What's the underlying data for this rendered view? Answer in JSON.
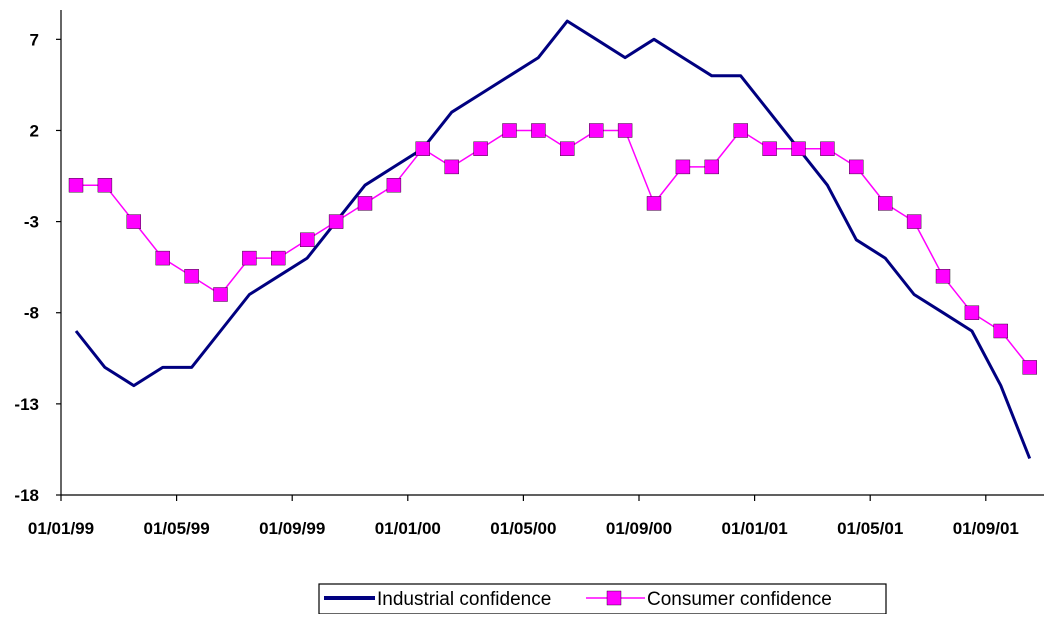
{
  "chart_data": {
    "type": "line",
    "title": "",
    "xlabel": "",
    "ylabel": "",
    "ylim": [
      -18,
      8.5
    ],
    "y_ticks": [
      -18,
      -13,
      -8,
      -3,
      2,
      7
    ],
    "x_tick_labels": [
      "01/01/99",
      "01/05/99",
      "01/09/99",
      "01/01/00",
      "01/05/00",
      "01/09/00",
      "01/01/01",
      "01/05/01",
      "01/09/01"
    ],
    "x": [
      "1999-01",
      "1999-02",
      "1999-03",
      "1999-04",
      "1999-05",
      "1999-06",
      "1999-07",
      "1999-08",
      "1999-09",
      "1999-10",
      "1999-11",
      "1999-12",
      "2000-01",
      "2000-02",
      "2000-03",
      "2000-04",
      "2000-05",
      "2000-06",
      "2000-07",
      "2000-08",
      "2000-09",
      "2000-10",
      "2000-11",
      "2000-12",
      "2001-01",
      "2001-02",
      "2001-03",
      "2001-04",
      "2001-05",
      "2001-06",
      "2001-07",
      "2001-08",
      "2001-09",
      "2001-10"
    ],
    "series": [
      {
        "name": "Industrial confidence",
        "color": "#000080",
        "marker": "none",
        "values": [
          -9,
          -11,
          -12,
          -11,
          -11,
          -9,
          -7,
          -6,
          -5,
          -3,
          -1,
          0,
          1,
          3,
          4,
          5,
          6,
          8,
          7,
          6,
          7,
          6,
          5,
          5,
          3,
          1,
          -1,
          -4,
          -5,
          -7,
          -8,
          -9,
          -12,
          -16
        ]
      },
      {
        "name": "Consumer confidence",
        "color": "#ff00ff",
        "marker": "square",
        "values": [
          -1,
          -1,
          -3,
          -5,
          -6,
          -7,
          -5,
          -5,
          -4,
          -3,
          -2,
          -1,
          1,
          0,
          1,
          2,
          2,
          1,
          2,
          2,
          -2,
          0,
          0,
          2,
          1,
          1,
          1,
          0,
          -2,
          -3,
          -6,
          -8,
          -9,
          -11
        ]
      }
    ],
    "grid": false,
    "legend_position": "bottom"
  }
}
